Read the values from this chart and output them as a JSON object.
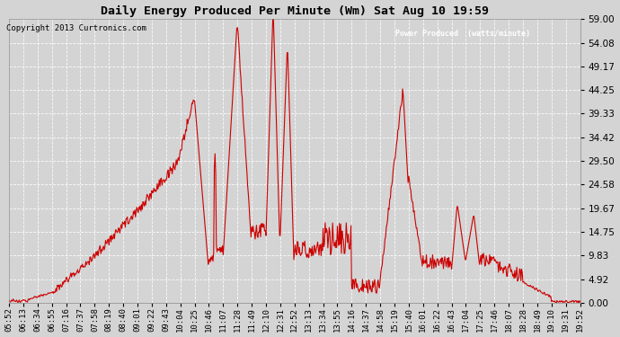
{
  "title": "Daily Energy Produced Per Minute (Wm) Sat Aug 10 19:59",
  "copyright": "Copyright 2013 Curtronics.com",
  "legend_label": "Power Produced  (watts/minute)",
  "legend_bg": "#cc0000",
  "legend_fg": "#ffffff",
  "line_color": "#cc0000",
  "bg_color": "#d4d4d4",
  "plot_bg": "#d4d4d4",
  "grid_color": "#ffffff",
  "yticks": [
    0.0,
    4.92,
    9.83,
    14.75,
    19.67,
    24.58,
    29.5,
    34.42,
    39.33,
    44.25,
    49.17,
    54.08,
    59.0
  ],
  "ymax": 59.0,
  "ymin": 0.0,
  "xtick_labels": [
    "05:52",
    "06:13",
    "06:34",
    "06:55",
    "07:16",
    "07:37",
    "07:58",
    "08:19",
    "08:40",
    "09:01",
    "09:22",
    "09:43",
    "10:04",
    "10:25",
    "10:46",
    "11:07",
    "11:28",
    "11:49",
    "12:10",
    "12:31",
    "12:52",
    "13:13",
    "13:34",
    "13:55",
    "14:16",
    "14:37",
    "14:58",
    "15:19",
    "15:40",
    "16:01",
    "16:22",
    "16:43",
    "17:04",
    "17:25",
    "17:46",
    "18:07",
    "18:28",
    "18:49",
    "19:10",
    "19:31",
    "19:52"
  ]
}
